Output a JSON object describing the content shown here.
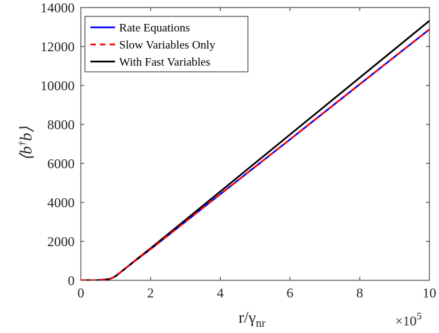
{
  "chart_data": {
    "type": "line",
    "xlabel": "r/γ",
    "xlabel_sub": "nr",
    "ylabel_lhs": "⟨b",
    "ylabel_sup": "†",
    "ylabel_rhs": "b⟩",
    "x_multiplier_base": "×10",
    "x_multiplier_exp": "5",
    "xlim": [
      0,
      10
    ],
    "ylim": [
      0,
      14000
    ],
    "x_ticks": [
      0,
      2,
      4,
      6,
      8,
      10
    ],
    "y_ticks": [
      0,
      2000,
      4000,
      6000,
      8000,
      10000,
      12000,
      14000
    ],
    "x_tick_labels": [
      "0",
      "2",
      "4",
      "6",
      "8",
      "10"
    ],
    "y_tick_labels": [
      "0",
      "2000",
      "4000",
      "6000",
      "8000",
      "10000",
      "12000",
      "14000"
    ],
    "grid": false,
    "legend_position": "top-left",
    "series": [
      {
        "name": "Rate Equations",
        "color": "#0000ff",
        "style": "solid",
        "x": [
          0,
          0.5,
          0.8,
          0.9,
          1.0,
          1.1,
          1.2,
          1.4,
          1.6,
          1.8,
          2.0,
          4.0,
          6.0,
          8.0,
          10.0
        ],
        "y": [
          0,
          10,
          60,
          120,
          220,
          360,
          500,
          780,
          1060,
          1330,
          1600,
          4420,
          7230,
          10060,
          12880
        ]
      },
      {
        "name": "Slow Variables Only",
        "color": "#ff0000",
        "style": "dashed",
        "x": [
          0,
          0.5,
          0.8,
          0.9,
          1.0,
          1.1,
          1.2,
          1.4,
          1.6,
          1.8,
          2.0,
          4.0,
          6.0,
          8.0,
          10.0
        ],
        "y": [
          0,
          10,
          60,
          120,
          220,
          360,
          500,
          780,
          1060,
          1330,
          1600,
          4420,
          7230,
          10060,
          12880
        ]
      },
      {
        "name": "With Fast Variables",
        "color": "#000000",
        "style": "solid",
        "x": [
          0,
          0.5,
          0.8,
          0.9,
          1.0,
          1.1,
          1.2,
          1.4,
          1.6,
          1.8,
          2.0,
          4.0,
          6.0,
          8.0,
          10.0
        ],
        "y": [
          0,
          10,
          60,
          120,
          220,
          360,
          500,
          790,
          1080,
          1360,
          1640,
          4560,
          7480,
          10400,
          13320
        ]
      }
    ]
  }
}
